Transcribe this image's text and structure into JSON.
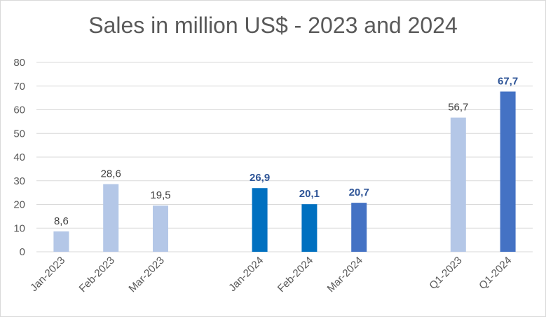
{
  "chart_data": {
    "type": "bar",
    "title": "Sales in million US$ - 2023 and 2024",
    "xlabel": "",
    "ylabel": "",
    "ylim": [
      0,
      80
    ],
    "yticks": [
      0,
      10,
      20,
      30,
      40,
      50,
      60,
      70,
      80
    ],
    "grid": true,
    "categories": [
      "Jan-2023",
      "Feb-2023",
      "Mar-2023",
      "Jan-2024",
      "Feb-2024",
      "Mar-2024",
      "Q1-2023",
      "Q1-2024"
    ],
    "values": [
      8.6,
      28.6,
      19.5,
      26.9,
      20.1,
      20.7,
      56.7,
      67.7
    ],
    "data_labels": [
      "8,6",
      "28,6",
      "19,5",
      "26,9",
      "20,1",
      "20,7",
      "56,7",
      "67,7"
    ],
    "label_bold": [
      false,
      false,
      false,
      true,
      true,
      true,
      false,
      true
    ],
    "colors": [
      "#b4c7e7",
      "#b4c7e7",
      "#b4c7e7",
      "#0070c0",
      "#0070c0",
      "#4472c4",
      "#b4c7e7",
      "#4472c4"
    ]
  }
}
